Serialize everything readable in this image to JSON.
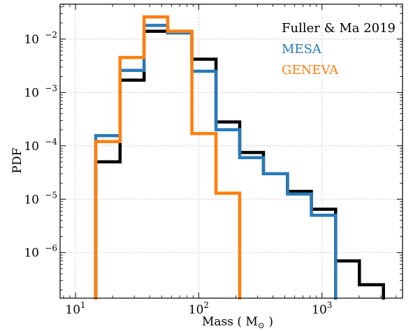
{
  "chart_data": {
    "type": "step",
    "xlabel": "Mass ( M",
    "xlabel_sub": "⊙",
    "xlabel_end": " )",
    "ylabel": "PDF",
    "xscale": "log",
    "yscale": "log",
    "xlim": [
      7.5,
      4500
    ],
    "ylim": [
      1.4e-07,
      0.045
    ],
    "grid": true,
    "legend_placement": "top-right",
    "x_ticks": [
      {
        "value": 10,
        "base": "10",
        "exp": "1"
      },
      {
        "value": 100,
        "base": "10",
        "exp": "2"
      },
      {
        "value": 1000,
        "base": "10",
        "exp": "3"
      }
    ],
    "y_ticks": [
      {
        "value": 1e-06,
        "base": "10",
        "exp": "−6"
      },
      {
        "value": 1e-05,
        "base": "10",
        "exp": "−5"
      },
      {
        "value": 0.0001,
        "base": "10",
        "exp": "−4"
      },
      {
        "value": 0.001,
        "base": "10",
        "exp": "−3"
      },
      {
        "value": 0.01,
        "base": "10",
        "exp": "−2"
      }
    ],
    "series": [
      {
        "name": "Fuller & Ma 2019",
        "color": "#000000",
        "edges": [
          14.6,
          23,
          36,
          56,
          88,
          138,
          215,
          335,
          525,
          820,
          1290,
          2010,
          3150
        ],
        "values": [
          5e-05,
          0.0017,
          0.014,
          0.013,
          0.0042,
          0.00028,
          7.5e-05,
          3e-05,
          1.4e-05,
          6.5e-06,
          7e-07,
          2.5e-07
        ]
      },
      {
        "name": "MESA",
        "color": "#2a7ab9",
        "edges": [
          14.6,
          23,
          36,
          56,
          88,
          138,
          215,
          335,
          525,
          820,
          1290
        ],
        "values": [
          0.000155,
          0.0026,
          0.018,
          0.013,
          0.0025,
          0.0002,
          6e-05,
          3e-05,
          1.25e-05,
          5e-06
        ]
      },
      {
        "name": "GENEVA",
        "color": "#ff7f0e",
        "edges": [
          14.6,
          23,
          36,
          56,
          88,
          138,
          215
        ],
        "values": [
          0.00012,
          0.0045,
          0.026,
          0.014,
          0.00017,
          1.3e-05
        ]
      }
    ]
  }
}
